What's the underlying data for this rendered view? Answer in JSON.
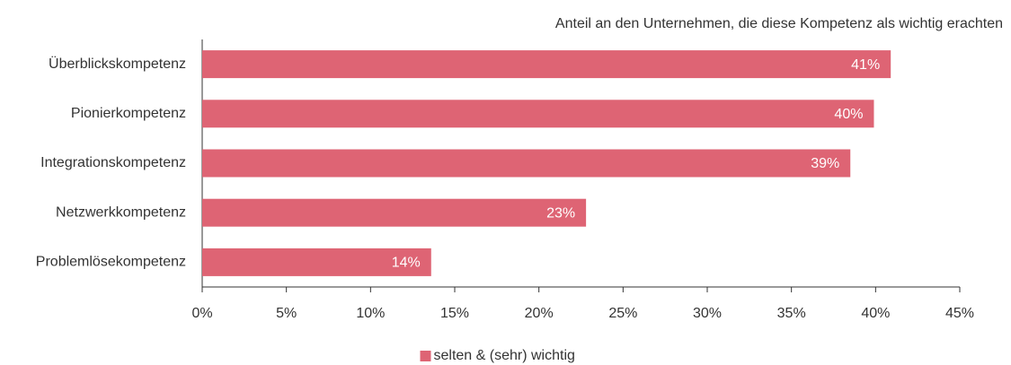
{
  "chart_data": {
    "type": "hbar",
    "title": "Anteil an den Unternehmen, die diese Kompetenz als wichtig erachten",
    "categories": [
      "Überblickskompetenz",
      "Pionierkompetenz",
      "Integrationskompetenz",
      "Netzwerkkompetenz",
      "Problemlösekompetenz"
    ],
    "series": [
      {
        "name": "selten & (sehr) wichtig",
        "color": "#de6474",
        "values": [
          40.9,
          39.9,
          38.5,
          22.8,
          13.6
        ],
        "value_labels": [
          "41%",
          "40%",
          "39%",
          "23%",
          "14%"
        ]
      }
    ],
    "xlim": [
      0,
      45
    ],
    "xticks": [
      {
        "value": 0,
        "label": "0%"
      },
      {
        "value": 5,
        "label": "5%"
      },
      {
        "value": 10,
        "label": "10%"
      },
      {
        "value": 15,
        "label": "15%"
      },
      {
        "value": 20,
        "label": "20%"
      },
      {
        "value": 25,
        "label": "25%"
      },
      {
        "value": 30,
        "label": "30%"
      },
      {
        "value": 35,
        "label": "35%"
      },
      {
        "value": 40,
        "label": "40%"
      },
      {
        "value": 45,
        "label": "45%"
      }
    ],
    "legend": "bottom"
  }
}
